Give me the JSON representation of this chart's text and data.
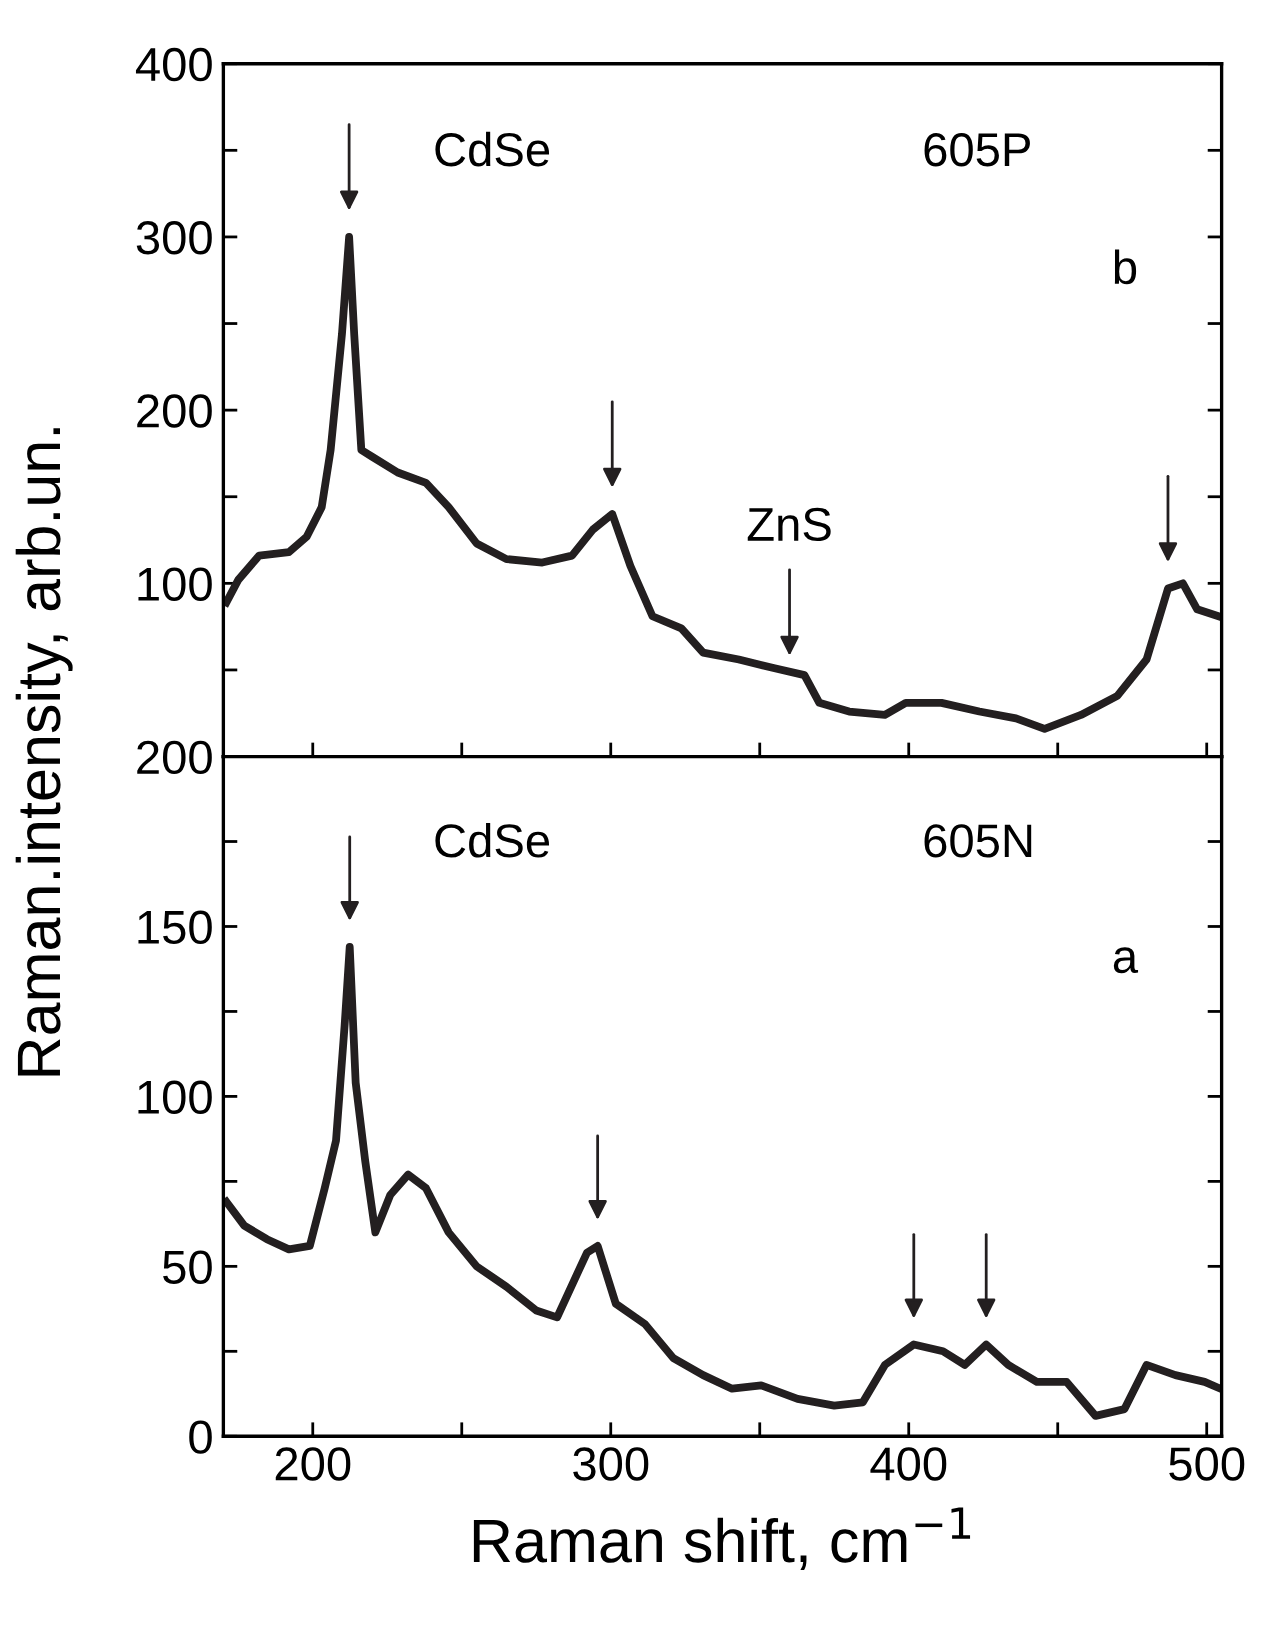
{
  "chart_data": [
    {
      "type": "line",
      "ylabel": "Raman.intensity, arb.un.",
      "tick_labels": "y",
      "xlim": [
        170,
        505
      ],
      "ylim": [
        0,
        400
      ],
      "xticks": [
        {
          "value": 200,
          "label": null
        },
        {
          "value": 250,
          "label": null
        },
        {
          "value": 300,
          "label": null
        },
        {
          "value": 350,
          "label": null
        },
        {
          "value": 400,
          "label": null
        },
        {
          "value": 450,
          "label": null
        },
        {
          "value": 500,
          "label": null
        }
      ],
      "yticks": [
        {
          "value": 50,
          "label": null
        },
        100,
        {
          "value": 150,
          "label": null
        },
        200,
        {
          "value": 250,
          "label": null
        },
        300,
        {
          "value": 350,
          "label": null
        },
        400
      ],
      "marker": "none",
      "line_style": "solid",
      "grid": false,
      "legend": false,
      "series": [
        {
          "color": "#231f20",
          "x": [
            171,
            175,
            182,
            192,
            198,
            203,
            206,
            209.8,
            212.2,
            213.9,
            216.3,
            220,
            228.5,
            238,
            245.6,
            255,
            265,
            277,
            287,
            294,
            300.5,
            306.6,
            314,
            323.7,
            331,
            343,
            355,
            365,
            370,
            380,
            392,
            399,
            411,
            423.7,
            436,
            445.6,
            457.8,
            470,
            479.8,
            487,
            492,
            496.8,
            504
          ],
          "values": [
            89,
            102,
            116,
            118,
            127,
            144,
            177,
            244,
            300,
            244,
            177,
            173,
            164,
            158,
            144,
            123,
            114,
            112,
            116,
            131,
            140,
            110,
            81,
            74,
            60,
            56,
            51,
            47,
            31,
            26,
            24,
            31,
            31,
            26,
            22,
            16,
            24,
            35,
            56,
            97,
            100,
            85,
            81
          ]
        }
      ],
      "annotations": [
        "CdSe",
        "605P",
        "b",
        {
          "text": "ZnS",
          "x": 360,
          "y": 55
        }
      ]
    },
    {
      "type": "line",
      "xlabel": "Raman shift, cm$^{−1}$",
      "xlim": [
        170,
        505
      ],
      "ylim": [
        0,
        200
      ],
      "xticks": [
        200,
        {
          "value": 250,
          "label": null
        },
        300,
        {
          "value": 350,
          "label": null
        },
        400,
        {
          "value": 450,
          "label": null
        },
        500
      ],
      "yticks": [
        0,
        {
          "value": 25,
          "label": null
        },
        50,
        {
          "value": 75,
          "label": null
        },
        100,
        {
          "value": 125,
          "label": null
        },
        150,
        {
          "value": 175,
          "label": null
        },
        200
      ],
      "marker": "none",
      "line_style": "solid",
      "grid": false,
      "legend": false,
      "series": [
        {
          "color": "#231f20",
          "x": [
            171,
            177,
            184.6,
            192,
            199,
            204,
            207.8,
            210.7,
            212.4,
            214.4,
            217.6,
            221,
            226,
            232,
            238,
            245.6,
            255,
            265,
            275,
            282,
            292,
            295.6,
            301.7,
            311.5,
            321,
            331,
            340.7,
            350.5,
            362.7,
            375,
            384.6,
            392,
            401.7,
            411.5,
            418.8,
            426,
            433.4,
            443,
            453,
            462.7,
            472.4,
            479.8,
            489.5,
            499.3,
            504.6
          ],
          "values": [
            69,
            62,
            58,
            55,
            56,
            73,
            87,
            121,
            144,
            104,
            81,
            60,
            71,
            77,
            73,
            60,
            50,
            44,
            37,
            35,
            54,
            56,
            39,
            33,
            23,
            18,
            14,
            15,
            11,
            9,
            10,
            21,
            27,
            25,
            21,
            27,
            21,
            16,
            16,
            6,
            8,
            21,
            18,
            16,
            14
          ]
        }
      ],
      "annotations": [
        "CdSe",
        "605N",
        "a"
      ]
    }
  ]
}
